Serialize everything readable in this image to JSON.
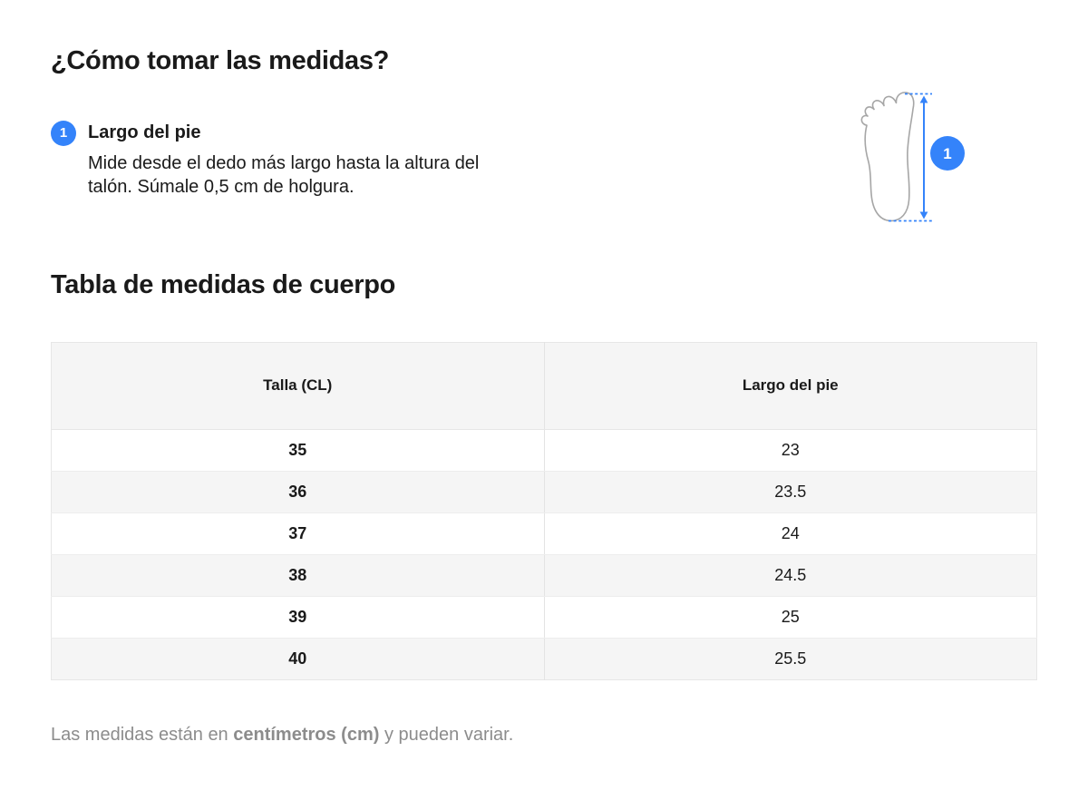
{
  "page": {
    "title": "¿Cómo tomar las medidas?"
  },
  "colors": {
    "accent": "#3483fa",
    "text": "#1a1a1a",
    "muted_text": "#8c8c8c",
    "table_stripe": "#f5f5f5",
    "table_border": "#e6e6e6",
    "foot_outline": "#a6a6a6"
  },
  "instructions": {
    "step": {
      "number": "1",
      "title": "Largo del pie",
      "description": "Mide desde el dedo más largo hasta la altura del talón. Súmale 0,5 cm de holgura."
    }
  },
  "diagram": {
    "icon": "foot-sole-with-measure-arrow",
    "badge": "1"
  },
  "size_table": {
    "title": "Tabla de medidas de cuerpo",
    "columns": [
      "Talla (CL)",
      "Largo del pie"
    ],
    "rows": [
      [
        "35",
        "23"
      ],
      [
        "36",
        "23.5"
      ],
      [
        "37",
        "24"
      ],
      [
        "38",
        "24.5"
      ],
      [
        "39",
        "25"
      ],
      [
        "40",
        "25.5"
      ]
    ]
  },
  "footnote": {
    "prefix": "Las medidas están en ",
    "bold": "centímetros (cm)",
    "suffix": " y pueden variar."
  }
}
